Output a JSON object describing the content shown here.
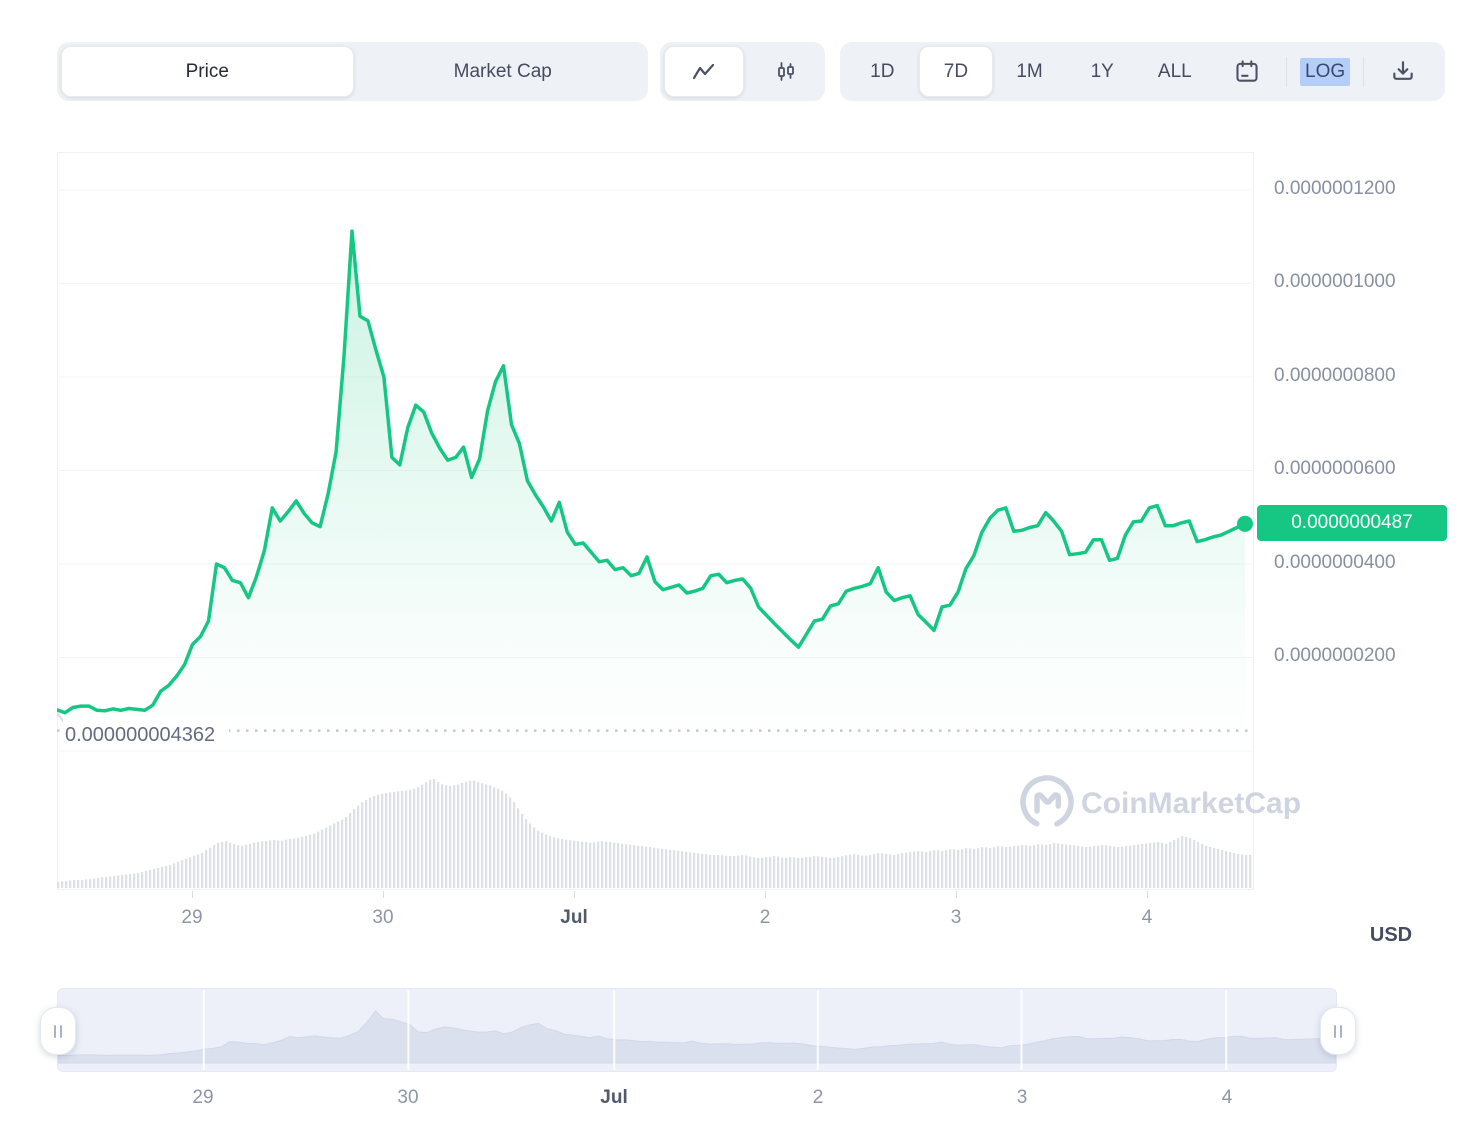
{
  "toolbar": {
    "metric_tabs": [
      {
        "label": "Price",
        "selected": true
      },
      {
        "label": "Market Cap",
        "selected": false
      }
    ],
    "range_buttons": [
      {
        "label": "1D",
        "selected": false
      },
      {
        "label": "7D",
        "selected": true
      },
      {
        "label": "1M",
        "selected": false
      },
      {
        "label": "1Y",
        "selected": false
      },
      {
        "label": "ALL",
        "selected": false
      }
    ],
    "log_label": "LOG"
  },
  "watermark_text": "CoinMarketCap",
  "usd_label": "USD",
  "chart_data": {
    "type": "area",
    "title": "7D cryptocurrency price chart with volume",
    "unit": "USD",
    "current_price_label": "0.0000000487",
    "reference_price_label": "0.000000004362",
    "y_ticks": [
      "0.0000001200",
      "0.0000001000",
      "0.0000000800",
      "0.0000000600",
      "0.0000000400",
      "0.0000000200"
    ],
    "x_ticks": [
      "29",
      "30",
      "Jul",
      "2",
      "3",
      "4"
    ],
    "ylim_1e10_usd": [
      0,
      1283
    ],
    "grid_values_1e10": [
      1200,
      1000,
      800,
      600,
      400,
      200,
      0
    ],
    "reference_value_1e10": 43.62,
    "last_value_1e10": 486,
    "price_series_1e10": [
      88,
      82,
      93,
      96,
      96,
      87,
      86,
      90,
      87,
      91,
      89,
      87,
      98,
      128,
      140,
      160,
      185,
      228,
      245,
      278,
      400,
      392,
      365,
      360,
      328,
      372,
      428,
      520,
      492,
      512,
      535,
      508,
      488,
      480,
      550,
      640,
      845,
      1112,
      930,
      920,
      858,
      800,
      628,
      612,
      692,
      740,
      725,
      680,
      648,
      622,
      628,
      650,
      585,
      625,
      728,
      790,
      824,
      698,
      658,
      578,
      548,
      522,
      492,
      532,
      468,
      442,
      445,
      425,
      405,
      408,
      388,
      392,
      375,
      380,
      415,
      362,
      345,
      350,
      355,
      338,
      342,
      348,
      375,
      378,
      360,
      365,
      368,
      348,
      308,
      290,
      272,
      255,
      238,
      222,
      250,
      278,
      282,
      310,
      315,
      342,
      348,
      352,
      358,
      392,
      340,
      322,
      328,
      332,
      292,
      275,
      258,
      308,
      312,
      340,
      390,
      418,
      468,
      498,
      515,
      520,
      470,
      472,
      478,
      482,
      510,
      492,
      470,
      420,
      422,
      425,
      452,
      452,
      408,
      412,
      462,
      490,
      492,
      520,
      525,
      482,
      482,
      488,
      492,
      448,
      452,
      458,
      462,
      470,
      478,
      486
    ],
    "volume_series_rel": [
      6,
      7,
      8,
      8,
      9,
      10,
      11,
      12,
      13,
      14,
      15,
      17,
      19,
      21,
      23,
      26,
      29,
      32,
      35,
      40,
      45,
      47,
      44,
      42,
      44,
      46,
      47,
      48,
      47,
      49,
      50,
      52,
      54,
      58,
      62,
      66,
      70,
      78,
      85,
      90,
      93,
      95,
      96,
      97,
      98,
      100,
      105,
      110,
      104,
      102,
      103,
      106,
      108,
      105,
      103,
      100,
      96,
      88,
      76,
      66,
      58,
      54,
      51,
      49,
      48,
      47,
      46,
      45,
      47,
      46,
      45,
      44,
      43,
      42,
      41,
      40,
      39,
      38,
      37,
      36,
      35,
      34,
      33,
      33,
      32,
      32,
      33,
      31,
      30,
      31,
      32,
      30,
      31,
      30,
      31,
      32,
      31,
      30,
      31,
      33,
      34,
      32,
      33,
      35,
      34,
      33,
      35,
      36,
      37,
      36,
      38,
      37,
      39,
      38,
      40,
      39,
      41,
      40,
      42,
      41,
      42,
      43,
      42,
      44,
      43,
      45,
      44,
      43,
      42,
      41,
      42,
      43,
      42,
      41,
      42,
      43,
      44,
      45,
      46,
      44,
      48,
      52,
      50,
      46,
      42,
      40,
      38,
      36,
      34,
      33
    ],
    "legend": "none",
    "grid": "horizontal"
  },
  "colors": {
    "accent_green": "#16c784",
    "fill_green_top": "rgba(22,199,132,0.22)",
    "axis_text": "#8790a2",
    "volume_bar": "#d3d8e4",
    "brush_bg": "#edf0f9",
    "brush_area": "#dbe0ef",
    "log_highlight": "#b4cefa",
    "gridline": "#f3f4f7"
  }
}
